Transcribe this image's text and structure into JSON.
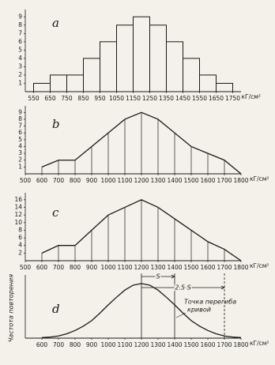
{
  "chart_data": [
    {
      "type": "histogram",
      "title": "a",
      "bins": [
        550,
        650,
        750,
        850,
        950,
        1050,
        1150,
        1250,
        1350,
        1450,
        1550,
        1650,
        1750
      ],
      "values": [
        1,
        2,
        2,
        4,
        6,
        8,
        9,
        8,
        6,
        4,
        2,
        1
      ],
      "xlim": [
        500,
        1800
      ],
      "xticks": [
        550,
        650,
        750,
        850,
        950,
        1050,
        1150,
        1250,
        1350,
        1450,
        1550,
        1650,
        1750
      ],
      "x_unit": "кГ/см²",
      "ylim": [
        0,
        9.5
      ],
      "yticks": [
        1,
        2,
        3,
        4,
        5,
        6,
        7,
        8,
        9
      ],
      "color": "#1a1a1a"
    },
    {
      "type": "line",
      "title": "b",
      "x": [
        600,
        700,
        800,
        900,
        1000,
        1100,
        1200,
        1300,
        1400,
        1500,
        1600,
        1700,
        1800
      ],
      "values": [
        1,
        2,
        2,
        4,
        6,
        8,
        9,
        8,
        6,
        4,
        3,
        2,
        0
      ],
      "drop_lines": true,
      "xlim": [
        500,
        1800
      ],
      "xticks": [
        500,
        600,
        700,
        800,
        900,
        1000,
        1100,
        1200,
        1300,
        1400,
        1500,
        1600,
        1700,
        1800
      ],
      "x_unit": "кГ/см²",
      "ylim": [
        0,
        9.5
      ],
      "yticks": [
        1,
        2,
        3,
        4,
        5,
        6,
        7,
        8,
        9
      ],
      "color": "#1a1a1a"
    },
    {
      "type": "line",
      "title": "c",
      "x": [
        600,
        700,
        800,
        900,
        1000,
        1100,
        1200,
        1300,
        1400,
        1500,
        1600,
        1700,
        1800
      ],
      "values": [
        2,
        4,
        4,
        8,
        12,
        14,
        16,
        14,
        11,
        8,
        5,
        3,
        0
      ],
      "drop_lines": true,
      "xlim": [
        500,
        1800
      ],
      "xticks": [
        500,
        600,
        700,
        800,
        900,
        1000,
        1100,
        1200,
        1300,
        1400,
        1500,
        1600,
        1700,
        1800
      ],
      "x_unit": "кГ/см²",
      "ylim": [
        0,
        17
      ],
      "yticks": [
        2,
        4,
        6,
        8,
        10,
        12,
        14,
        16
      ],
      "color": "#1a1a1a"
    },
    {
      "type": "line",
      "title": "d",
      "ylabel": "Частота повторения",
      "x": [
        600,
        650,
        700,
        750,
        800,
        850,
        900,
        950,
        1000,
        1050,
        1100,
        1150,
        1200,
        1250,
        1300,
        1350,
        1400,
        1450,
        1500,
        1550,
        1600,
        1650,
        1700,
        1750,
        1800
      ],
      "values": [
        0.01,
        0.02,
        0.04,
        0.08,
        0.14,
        0.22,
        0.32,
        0.46,
        0.61,
        0.75,
        0.88,
        0.97,
        1.0,
        0.97,
        0.88,
        0.75,
        0.61,
        0.46,
        0.32,
        0.22,
        0.14,
        0.08,
        0.04,
        0.02,
        0.01
      ],
      "xlim": [
        500,
        1800
      ],
      "xticks": [
        600,
        700,
        800,
        900,
        1000,
        1100,
        1200,
        1300,
        1400,
        1500,
        1600,
        1700,
        1800
      ],
      "x_unit": "кГ/см²",
      "ylim": [
        0,
        1.1
      ],
      "color": "#1a1a1a",
      "verticals": [
        {
          "x": 1200,
          "style": "solid"
        },
        {
          "x": 1400,
          "style": "solid"
        },
        {
          "x": 1700,
          "style": "dashed"
        }
      ],
      "spans": [
        {
          "text": "S",
          "x": [
            1200,
            1400
          ]
        },
        {
          "text": "2.5 S",
          "x": [
            1200,
            1700
          ]
        }
      ],
      "note": {
        "x": 1400,
        "lines": [
          "Точка перегиба",
          "кривой"
        ]
      }
    }
  ]
}
